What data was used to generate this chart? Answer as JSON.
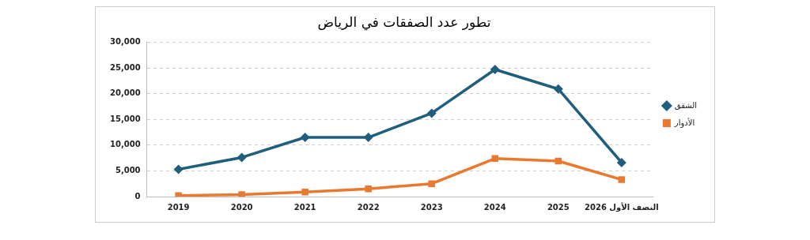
{
  "chart_data": {
    "type": "line",
    "title": "تطور عدد الصفقات في الرياض",
    "categories": [
      "2019",
      "2020",
      "2021",
      "2022",
      "2023",
      "2024",
      "2025",
      "النصف الأول 2026"
    ],
    "series": [
      {
        "name": "الشقق",
        "color": "#1f5f7d",
        "marker": "diamond",
        "values": [
          5300,
          7600,
          11500,
          11500,
          16200,
          24700,
          20900,
          6600
        ]
      },
      {
        "name": "الأدوار",
        "color": "#e8792f",
        "marker": "square",
        "values": [
          200,
          400,
          900,
          1500,
          2500,
          7400,
          6900,
          3300
        ]
      }
    ],
    "ylim": [
      0,
      30000
    ],
    "yticks": [
      0,
      {
        "value": 5000,
        "label": "5,000"
      },
      {
        "value": 10000,
        "label": "10,000"
      },
      {
        "value": 15000,
        "label": "15,000"
      },
      {
        "value": 20000,
        "label": "20,000"
      },
      {
        "value": 25000,
        "label": "25,000"
      },
      {
        "value": 30000,
        "label": "30,000"
      }
    ],
    "grid": "y",
    "legend": "right",
    "line_style": "solid"
  }
}
